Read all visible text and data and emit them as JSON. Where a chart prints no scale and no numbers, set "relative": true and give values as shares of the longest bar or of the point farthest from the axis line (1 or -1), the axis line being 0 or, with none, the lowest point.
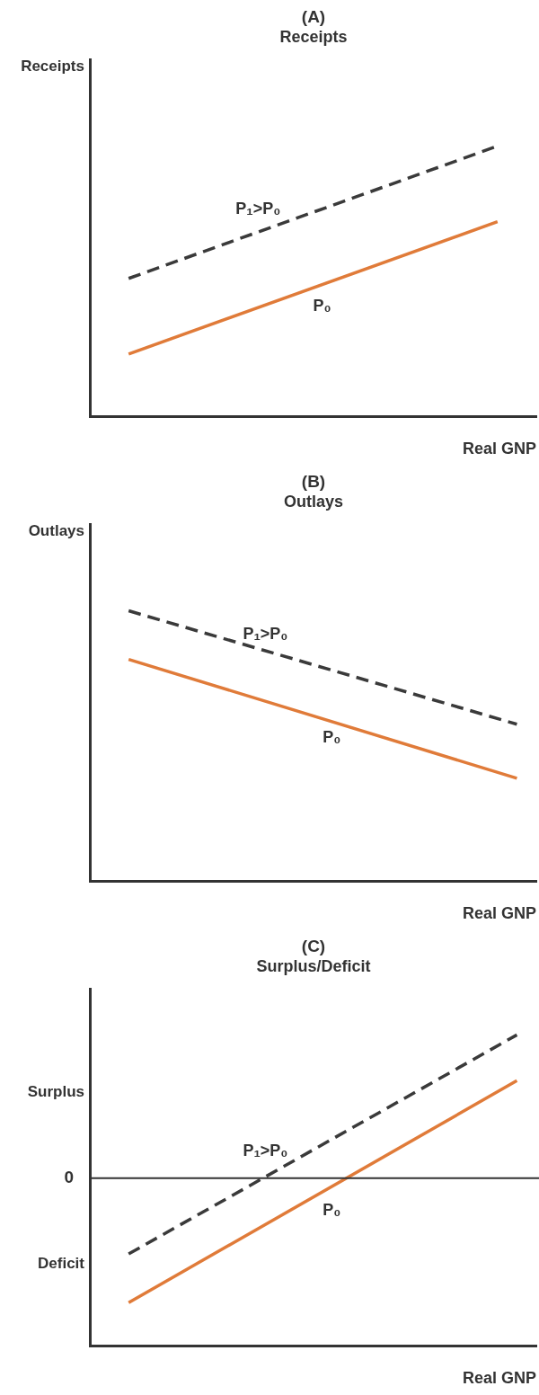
{
  "chart_data": [
    {
      "type": "line",
      "title": "(A)",
      "subtitle": "Receipts",
      "xlabel": "Real GNP",
      "ylabel": "Receipts",
      "relative": true,
      "legend": false,
      "grid": false,
      "marker": "none",
      "categories": [
        null,
        null,
        null,
        null,
        null,
        null,
        null,
        null,
        null,
        null,
        null,
        null,
        null,
        null,
        null,
        null,
        null,
        null,
        null,
        null,
        null,
        null,
        null,
        null
      ],
      "series": [
        {
          "name": "P₁>P₀",
          "color": "#3a3a3a",
          "line_style": "dashed",
          "values": [
            null,
            null,
            0.51,
            null,
            null,
            null,
            null,
            null,
            null,
            null,
            null,
            null,
            null,
            null,
            null,
            null,
            null,
            null,
            null,
            null,
            null,
            1.0,
            null,
            null
          ]
        },
        {
          "name": "P₀",
          "color": "#e07b39",
          "line_style": "solid",
          "values": [
            null,
            null,
            0.23,
            null,
            null,
            null,
            null,
            null,
            null,
            null,
            null,
            null,
            null,
            null,
            null,
            null,
            null,
            null,
            null,
            null,
            null,
            0.72,
            null,
            null
          ]
        }
      ]
    },
    {
      "type": "line",
      "title": "(B)",
      "subtitle": "Outlays",
      "xlabel": "Real GNP",
      "ylabel": "Outlays",
      "relative": true,
      "legend": false,
      "grid": false,
      "marker": "none",
      "categories": [
        null,
        null,
        null,
        null,
        null,
        null,
        null,
        null,
        null,
        null,
        null,
        null,
        null,
        null,
        null,
        null,
        null,
        null,
        null,
        null,
        null,
        null,
        null,
        null
      ],
      "series": [
        {
          "name": "P₁>P₀",
          "color": "#3a3a3a",
          "line_style": "dashed",
          "values": [
            null,
            null,
            1.0,
            null,
            null,
            null,
            null,
            null,
            null,
            null,
            null,
            null,
            null,
            null,
            null,
            null,
            null,
            null,
            null,
            null,
            null,
            null,
            0.58,
            null
          ]
        },
        {
          "name": "P₀",
          "color": "#e07b39",
          "line_style": "solid",
          "values": [
            null,
            null,
            0.82,
            null,
            null,
            null,
            null,
            null,
            null,
            null,
            null,
            null,
            null,
            null,
            null,
            null,
            null,
            null,
            null,
            null,
            null,
            null,
            0.38,
            null
          ]
        }
      ]
    },
    {
      "type": "line",
      "title": "(C)",
      "subtitle": "Surplus/Deficit",
      "xlabel": "Real GNP",
      "relative": true,
      "legend": false,
      "grid": false,
      "marker": "none",
      "annotations": [
        "Surplus",
        "Deficit"
      ],
      "ref_lines": [
        {
          "axis": "y",
          "value": 0,
          "label": "0"
        }
      ],
      "categories": [
        null,
        null,
        null,
        null,
        null,
        null,
        null,
        null,
        null,
        null,
        null,
        null,
        null,
        null,
        null,
        null,
        null,
        null,
        null,
        null,
        null,
        null,
        null,
        null
      ],
      "series": [
        {
          "name": "P₁>P₀",
          "color": "#3a3a3a",
          "line_style": "dashed",
          "values": [
            null,
            null,
            -0.53,
            null,
            null,
            null,
            null,
            null,
            null,
            null,
            null,
            null,
            null,
            null,
            null,
            null,
            null,
            null,
            null,
            null,
            null,
            null,
            1.0,
            null
          ]
        },
        {
          "name": "P₀",
          "color": "#e07b39",
          "line_style": "solid",
          "values": [
            null,
            null,
            -0.87,
            null,
            null,
            null,
            null,
            null,
            null,
            null,
            null,
            null,
            null,
            null,
            null,
            null,
            null,
            null,
            null,
            null,
            null,
            null,
            0.68,
            null
          ]
        }
      ]
    }
  ]
}
